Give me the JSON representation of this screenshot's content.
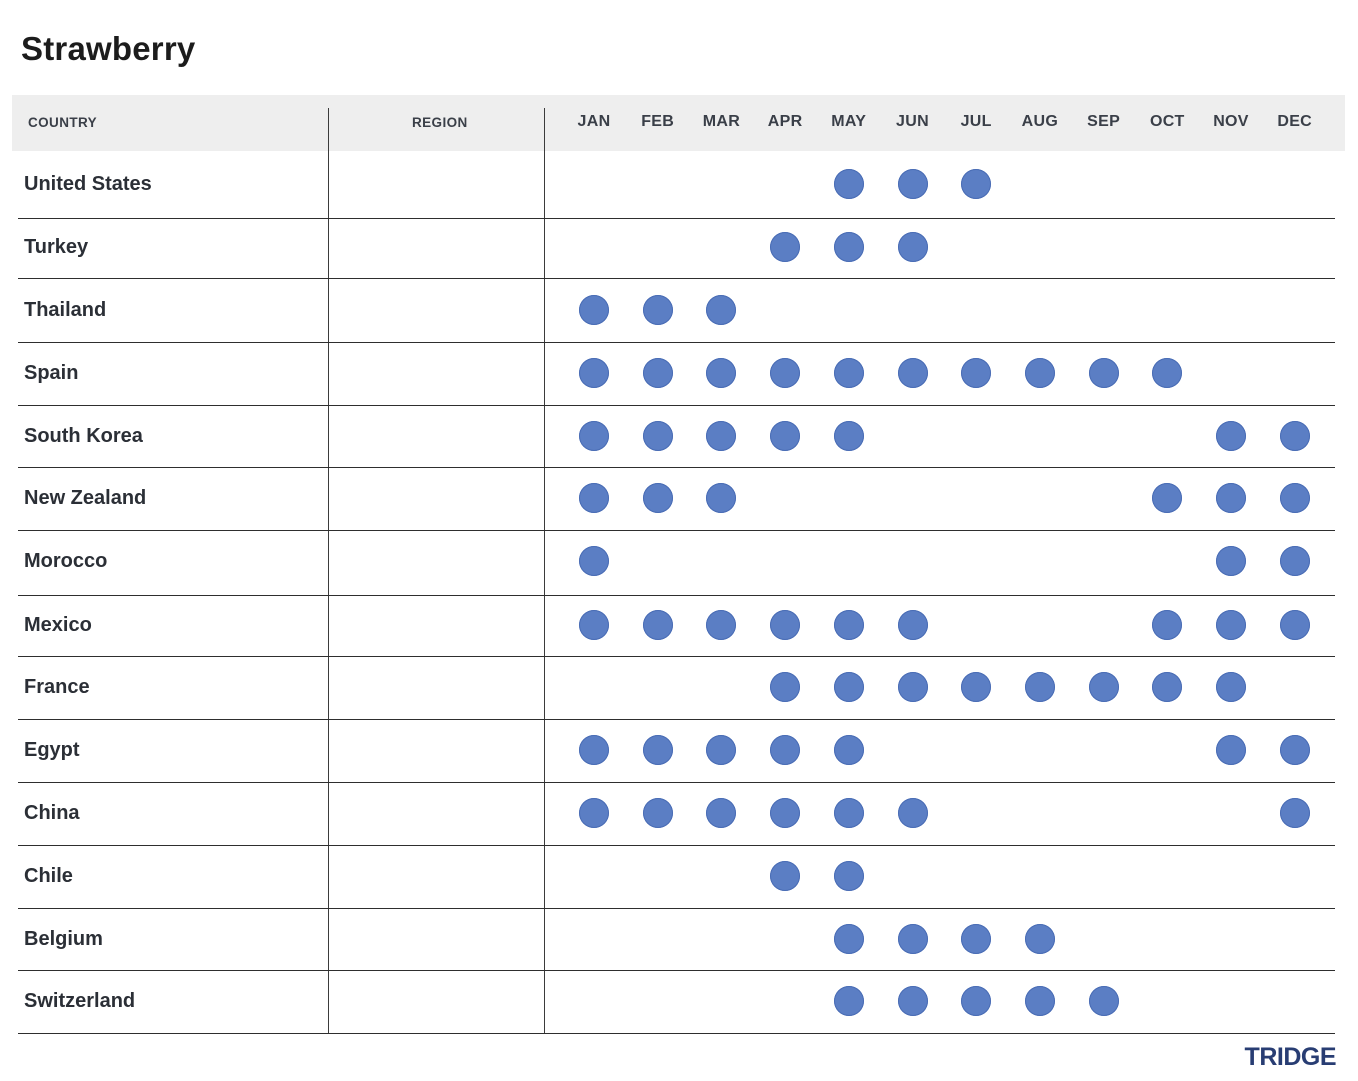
{
  "chart_data": {
    "type": "table",
    "title": "Strawberry",
    "columns": {
      "country": "COUNTRY",
      "region": "REGION"
    },
    "months": [
      "JAN",
      "FEB",
      "MAR",
      "APR",
      "MAY",
      "JUN",
      "JUL",
      "AUG",
      "SEP",
      "OCT",
      "NOV",
      "DEC"
    ],
    "rows": [
      {
        "country": "United States",
        "region": "",
        "active": [
          0,
          0,
          0,
          0,
          1,
          1,
          1,
          0,
          0,
          0,
          0,
          0
        ]
      },
      {
        "country": "Turkey",
        "region": "",
        "active": [
          0,
          0,
          0,
          1,
          1,
          1,
          0,
          0,
          0,
          0,
          0,
          0
        ]
      },
      {
        "country": "Thailand",
        "region": "",
        "active": [
          1,
          1,
          1,
          0,
          0,
          0,
          0,
          0,
          0,
          0,
          0,
          0
        ]
      },
      {
        "country": "Spain",
        "region": "",
        "active": [
          1,
          1,
          1,
          1,
          1,
          1,
          1,
          1,
          1,
          1,
          0,
          0
        ]
      },
      {
        "country": "South Korea",
        "region": "",
        "active": [
          1,
          1,
          1,
          1,
          1,
          0,
          0,
          0,
          0,
          0,
          1,
          1
        ]
      },
      {
        "country": "New Zealand",
        "region": "",
        "active": [
          1,
          1,
          1,
          0,
          0,
          0,
          0,
          0,
          0,
          1,
          1,
          1
        ]
      },
      {
        "country": "Morocco",
        "region": "",
        "active": [
          1,
          0,
          0,
          0,
          0,
          0,
          0,
          0,
          0,
          0,
          1,
          1
        ]
      },
      {
        "country": "Mexico",
        "region": "",
        "active": [
          1,
          1,
          1,
          1,
          1,
          1,
          0,
          0,
          0,
          1,
          1,
          1
        ]
      },
      {
        "country": "France",
        "region": "",
        "active": [
          0,
          0,
          0,
          1,
          1,
          1,
          1,
          1,
          1,
          1,
          1,
          0
        ]
      },
      {
        "country": "Egypt",
        "region": "",
        "active": [
          1,
          1,
          1,
          1,
          1,
          0,
          0,
          0,
          0,
          0,
          1,
          1
        ]
      },
      {
        "country": "China",
        "region": "",
        "active": [
          1,
          1,
          1,
          1,
          1,
          1,
          0,
          0,
          0,
          0,
          0,
          1
        ]
      },
      {
        "country": "Chile",
        "region": "",
        "active": [
          0,
          0,
          0,
          1,
          1,
          0,
          0,
          0,
          0,
          0,
          0,
          0
        ]
      },
      {
        "country": "Belgium",
        "region": "",
        "active": [
          0,
          0,
          0,
          0,
          1,
          1,
          1,
          1,
          0,
          0,
          0,
          0
        ]
      },
      {
        "country": "Switzerland",
        "region": "",
        "active": [
          0,
          0,
          0,
          0,
          1,
          1,
          1,
          1,
          1,
          0,
          0,
          0
        ]
      }
    ],
    "dot_color": "#5b7ec4",
    "header_background": "#eeeeee"
  },
  "brand": "TRIDGE"
}
